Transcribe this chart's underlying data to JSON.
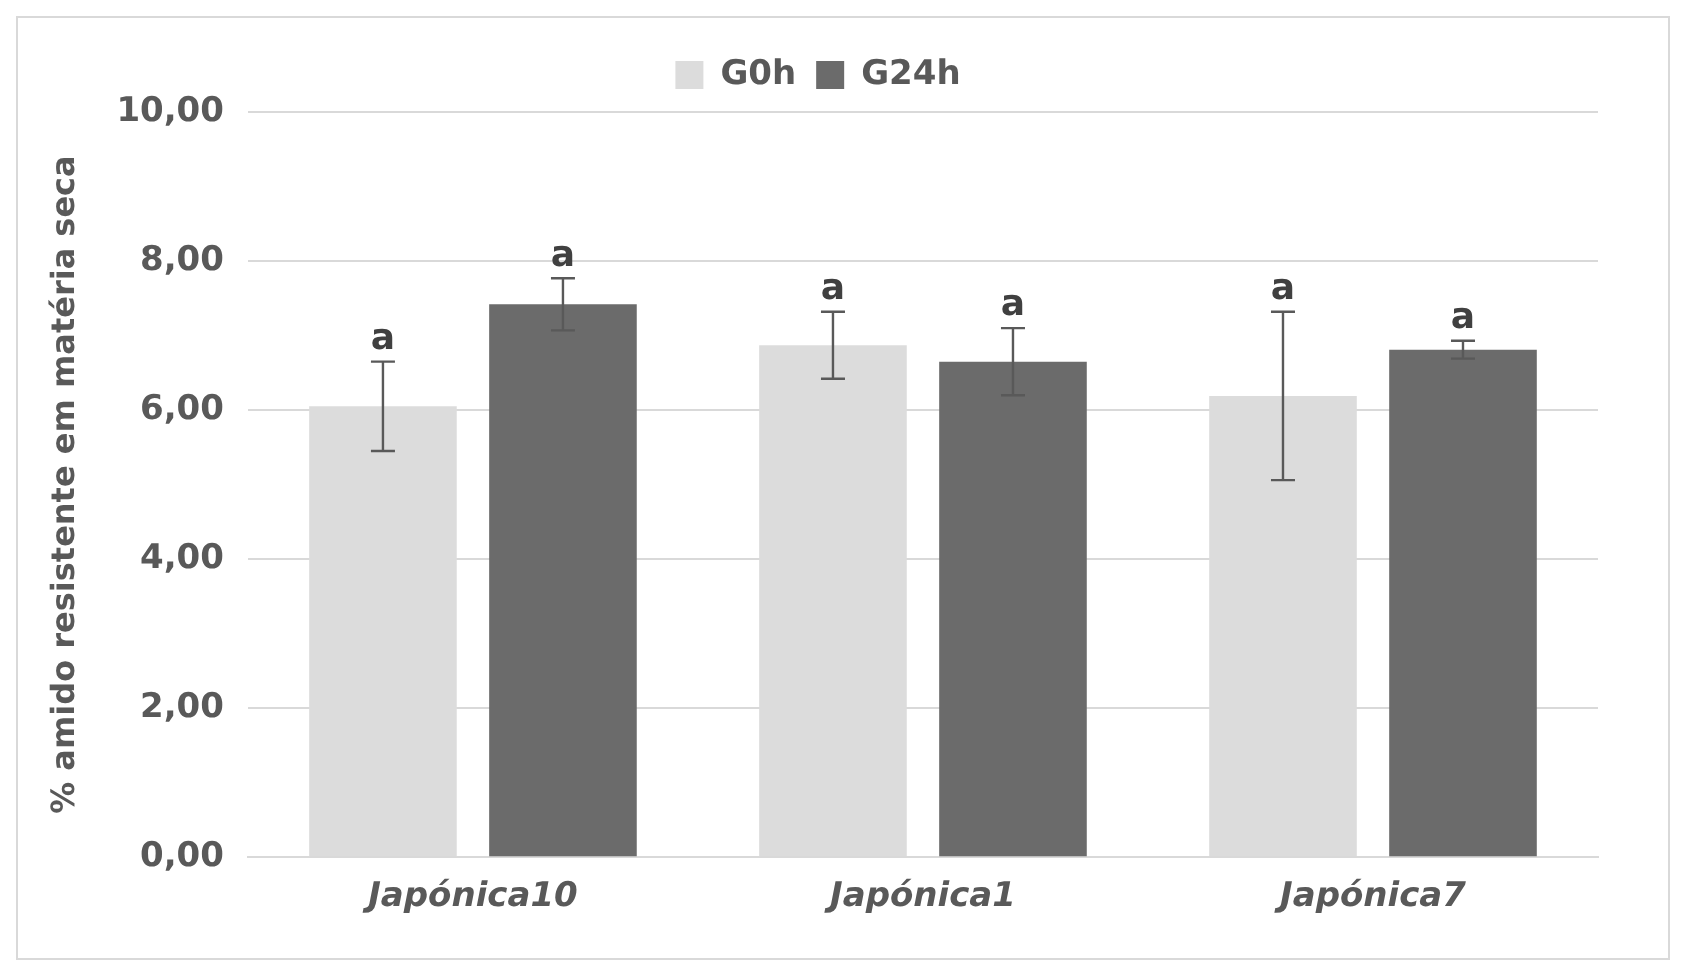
{
  "chart_data": {
    "type": "bar",
    "ylabel": "% amido resistente em matéria seca",
    "categories": [
      "Japónica10",
      "Japónica1",
      "Japónica7"
    ],
    "series": [
      {
        "name": "G0h",
        "color": "#dcdcdc",
        "values": [
          6.05,
          6.87,
          6.19
        ],
        "errors": [
          0.6,
          0.45,
          1.13
        ],
        "value_labels": [
          "a",
          "a",
          "a"
        ]
      },
      {
        "name": "G24h",
        "color": "#6b6b6b",
        "values": [
          7.42,
          6.65,
          6.81
        ],
        "errors": [
          0.35,
          0.45,
          0.12
        ],
        "value_labels": [
          "a",
          "a",
          "a"
        ]
      }
    ],
    "ylim": [
      0,
      10
    ],
    "yticks": [
      {
        "value": 0,
        "label": "0,00"
      },
      {
        "value": 2,
        "label": "2,00"
      },
      {
        "value": 4,
        "label": "4,00"
      },
      {
        "value": 6,
        "label": "6,00"
      },
      {
        "value": 8,
        "label": "8,00"
      },
      {
        "value": 10,
        "label": "10,00"
      }
    ],
    "grid": "y",
    "legend": "top"
  }
}
